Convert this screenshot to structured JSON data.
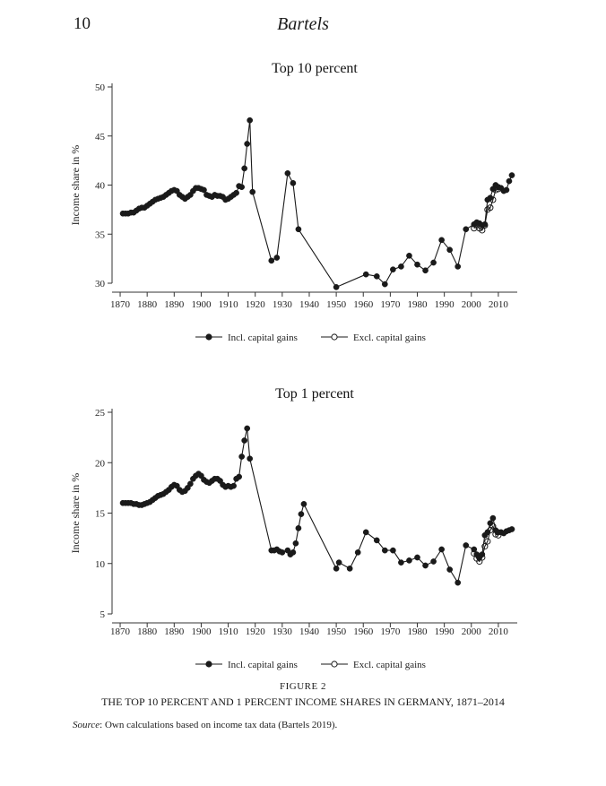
{
  "header": {
    "page_number": "10",
    "running_head": "Bartels"
  },
  "chart_data": [
    {
      "type": "line",
      "title": "Top 10 percent",
      "ylabel": "Income share in %",
      "xlabel": "",
      "xlim": [
        1867,
        2017
      ],
      "ylim": [
        30,
        50
      ],
      "xticks": [
        1870,
        1880,
        1890,
        1900,
        1910,
        1920,
        1930,
        1940,
        1950,
        1960,
        1970,
        1980,
        1990,
        2000,
        2010
      ],
      "yticks": [
        30,
        35,
        40,
        45,
        50
      ],
      "legend": "bottom",
      "series": [
        {
          "name": "Incl. capital gains",
          "marker": "filled-circle",
          "points": [
            [
              1871,
              37.1
            ],
            [
              1872,
              37.1
            ],
            [
              1873,
              37.1
            ],
            [
              1874,
              37.2
            ],
            [
              1875,
              37.2
            ],
            [
              1876,
              37.4
            ],
            [
              1877,
              37.6
            ],
            [
              1878,
              37.7
            ],
            [
              1879,
              37.7
            ],
            [
              1880,
              37.9
            ],
            [
              1881,
              38.1
            ],
            [
              1882,
              38.3
            ],
            [
              1883,
              38.5
            ],
            [
              1884,
              38.6
            ],
            [
              1885,
              38.7
            ],
            [
              1886,
              38.8
            ],
            [
              1887,
              39.0
            ],
            [
              1888,
              39.2
            ],
            [
              1889,
              39.4
            ],
            [
              1890,
              39.5
            ],
            [
              1891,
              39.4
            ],
            [
              1892,
              39.0
            ],
            [
              1893,
              38.8
            ],
            [
              1894,
              38.6
            ],
            [
              1895,
              38.8
            ],
            [
              1896,
              39.0
            ],
            [
              1897,
              39.4
            ],
            [
              1898,
              39.7
            ],
            [
              1899,
              39.7
            ],
            [
              1900,
              39.6
            ],
            [
              1901,
              39.5
            ],
            [
              1902,
              39.0
            ],
            [
              1903,
              38.9
            ],
            [
              1904,
              38.8
            ],
            [
              1905,
              39.0
            ],
            [
              1906,
              38.9
            ],
            [
              1907,
              38.9
            ],
            [
              1908,
              38.8
            ],
            [
              1909,
              38.5
            ],
            [
              1910,
              38.6
            ],
            [
              1911,
              38.8
            ],
            [
              1912,
              39.0
            ],
            [
              1913,
              39.2
            ],
            [
              1914,
              39.9
            ],
            [
              1915,
              39.8
            ],
            [
              1916,
              41.7
            ],
            [
              1917,
              44.2
            ],
            [
              1918,
              46.6
            ],
            [
              1919,
              39.3
            ],
            [
              1926,
              32.3
            ],
            [
              1928,
              32.6
            ],
            [
              1932,
              41.2
            ],
            [
              1934,
              40.2
            ],
            [
              1936,
              35.5
            ],
            [
              1950,
              29.6
            ],
            [
              1961,
              30.9
            ],
            [
              1965,
              30.7
            ],
            [
              1968,
              29.9
            ],
            [
              1971,
              31.4
            ],
            [
              1974,
              31.7
            ],
            [
              1977,
              32.8
            ],
            [
              1980,
              31.9
            ],
            [
              1983,
              31.3
            ],
            [
              1986,
              32.1
            ],
            [
              1989,
              34.4
            ],
            [
              1992,
              33.4
            ],
            [
              1995,
              31.7
            ],
            [
              1998,
              35.5
            ],
            [
              2001,
              36.0
            ],
            [
              2002,
              36.2
            ],
            [
              2003,
              36.1
            ],
            [
              2004,
              35.9
            ],
            [
              2005,
              36.0
            ],
            [
              2006,
              38.5
            ],
            [
              2007,
              38.7
            ],
            [
              2008,
              39.6
            ],
            [
              2009,
              40.0
            ],
            [
              2010,
              39.8
            ],
            [
              2011,
              39.7
            ],
            [
              2012,
              39.4
            ],
            [
              2013,
              39.5
            ],
            [
              2014,
              40.4
            ],
            [
              2015,
              41.0
            ]
          ]
        },
        {
          "name": "Excl. capital gains",
          "marker": "open-circle",
          "points": [
            [
              2001,
              35.6
            ],
            [
              2002,
              35.9
            ],
            [
              2003,
              35.6
            ],
            [
              2004,
              35.4
            ],
            [
              2005,
              35.9
            ],
            [
              2006,
              37.5
            ],
            [
              2007,
              37.7
            ],
            [
              2008,
              38.5
            ],
            [
              2009,
              39.5
            ],
            [
              2010,
              39.6
            ]
          ]
        }
      ]
    },
    {
      "type": "line",
      "title": "Top 1 percent",
      "ylabel": "Income share in %",
      "xlabel": "",
      "xlim": [
        1867,
        2017
      ],
      "ylim": [
        5,
        25
      ],
      "xticks": [
        1870,
        1880,
        1890,
        1900,
        1910,
        1920,
        1930,
        1940,
        1950,
        1960,
        1970,
        1980,
        1990,
        2000,
        2010
      ],
      "yticks": [
        5,
        10,
        15,
        20,
        25
      ],
      "legend": "bottom",
      "series": [
        {
          "name": "Incl. capital gains",
          "marker": "filled-circle",
          "points": [
            [
              1871,
              16.0
            ],
            [
              1872,
              16.0
            ],
            [
              1873,
              16.0
            ],
            [
              1874,
              16.0
            ],
            [
              1875,
              15.9
            ],
            [
              1876,
              15.9
            ],
            [
              1877,
              15.8
            ],
            [
              1878,
              15.8
            ],
            [
              1879,
              15.9
            ],
            [
              1880,
              16.0
            ],
            [
              1881,
              16.1
            ],
            [
              1882,
              16.3
            ],
            [
              1883,
              16.5
            ],
            [
              1884,
              16.7
            ],
            [
              1885,
              16.8
            ],
            [
              1886,
              16.9
            ],
            [
              1887,
              17.1
            ],
            [
              1888,
              17.3
            ],
            [
              1889,
              17.6
            ],
            [
              1890,
              17.8
            ],
            [
              1891,
              17.7
            ],
            [
              1892,
              17.3
            ],
            [
              1893,
              17.1
            ],
            [
              1894,
              17.2
            ],
            [
              1895,
              17.5
            ],
            [
              1896,
              17.9
            ],
            [
              1897,
              18.4
            ],
            [
              1898,
              18.7
            ],
            [
              1899,
              18.9
            ],
            [
              1900,
              18.7
            ],
            [
              1901,
              18.3
            ],
            [
              1902,
              18.1
            ],
            [
              1903,
              18.0
            ],
            [
              1904,
              18.2
            ],
            [
              1905,
              18.4
            ],
            [
              1906,
              18.4
            ],
            [
              1907,
              18.2
            ],
            [
              1908,
              17.8
            ],
            [
              1909,
              17.6
            ],
            [
              1910,
              17.7
            ],
            [
              1911,
              17.6
            ],
            [
              1912,
              17.7
            ],
            [
              1913,
              18.4
            ],
            [
              1914,
              18.6
            ],
            [
              1915,
              20.6
            ],
            [
              1916,
              22.2
            ],
            [
              1917,
              23.4
            ],
            [
              1918,
              20.4
            ],
            [
              1926,
              11.3
            ],
            [
              1927,
              11.3
            ],
            [
              1928,
              11.4
            ],
            [
              1929,
              11.2
            ],
            [
              1930,
              11.1
            ],
            [
              1932,
              11.3
            ],
            [
              1933,
              10.9
            ],
            [
              1934,
              11.1
            ],
            [
              1935,
              12.0
            ],
            [
              1936,
              13.5
            ],
            [
              1937,
              14.9
            ],
            [
              1938,
              15.9
            ],
            [
              1950,
              9.5
            ],
            [
              1951,
              10.1
            ],
            [
              1955,
              9.5
            ],
            [
              1958,
              11.1
            ],
            [
              1961,
              13.1
            ],
            [
              1965,
              12.3
            ],
            [
              1968,
              11.3
            ],
            [
              1971,
              11.3
            ],
            [
              1974,
              10.1
            ],
            [
              1977,
              10.3
            ],
            [
              1980,
              10.6
            ],
            [
              1983,
              9.8
            ],
            [
              1986,
              10.2
            ],
            [
              1989,
              11.4
            ],
            [
              1992,
              9.4
            ],
            [
              1995,
              8.1
            ],
            [
              1998,
              11.8
            ],
            [
              2001,
              11.4
            ],
            [
              2002,
              10.9
            ],
            [
              2003,
              10.6
            ],
            [
              2004,
              10.9
            ],
            [
              2005,
              12.8
            ],
            [
              2006,
              13.1
            ],
            [
              2007,
              14.0
            ],
            [
              2008,
              14.5
            ],
            [
              2009,
              13.3
            ],
            [
              2010,
              13.1
            ],
            [
              2011,
              13.1
            ],
            [
              2012,
              13.0
            ],
            [
              2013,
              13.2
            ],
            [
              2014,
              13.3
            ],
            [
              2015,
              13.4
            ]
          ]
        },
        {
          "name": "Excl. capital gains",
          "marker": "open-circle",
          "points": [
            [
              2001,
              11.0
            ],
            [
              2002,
              10.5
            ],
            [
              2003,
              10.2
            ],
            [
              2004,
              10.6
            ],
            [
              2005,
              11.7
            ],
            [
              2006,
              12.2
            ],
            [
              2007,
              13.3
            ],
            [
              2008,
              13.7
            ],
            [
              2009,
              12.9
            ],
            [
              2010,
              12.8
            ]
          ]
        }
      ]
    }
  ],
  "caption": {
    "figure_label": "FIGURE 2",
    "title": "THE TOP 10 PERCENT AND 1 PERCENT INCOME SHARES IN GERMANY, 1871–2014",
    "source_label": "Source",
    "source_text": ": Own calculations based on income tax data (Bartels 2019)."
  }
}
